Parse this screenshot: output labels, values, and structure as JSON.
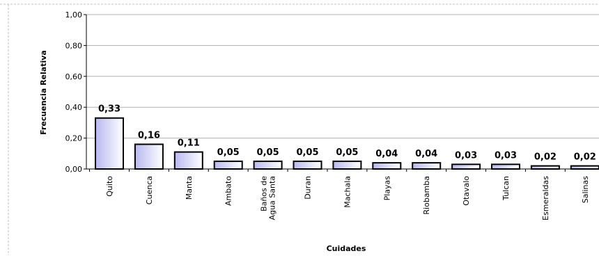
{
  "chart_data": {
    "type": "bar",
    "title": "",
    "xlabel": "Cuidades",
    "ylabel": "Frecuencia Relativa",
    "ylim": [
      0,
      1
    ],
    "yticks": [
      "0,00",
      "0,20",
      "0,40",
      "0,60",
      "0,80",
      "1,00"
    ],
    "grid": true,
    "categories": [
      [
        "Quito"
      ],
      [
        "Cuenca"
      ],
      [
        "Manta"
      ],
      [
        "Ambato"
      ],
      [
        "Baños de",
        "Agua Santa"
      ],
      [
        "Duran"
      ],
      [
        "Machala"
      ],
      [
        "Playas"
      ],
      [
        "Riobamba"
      ],
      [
        "Otavalo"
      ],
      [
        "Tulcan"
      ],
      [
        "Esmeraldas"
      ],
      [
        "Salinas"
      ]
    ],
    "values": [
      0.33,
      0.16,
      0.11,
      0.05,
      0.05,
      0.05,
      0.05,
      0.04,
      0.04,
      0.03,
      0.03,
      0.02,
      0.02
    ],
    "data_labels": [
      "0,33",
      "0,16",
      "0,11",
      "0,05",
      "0,05",
      "0,05",
      "0,05",
      "0,04",
      "0,04",
      "0,03",
      "0,03",
      "0,02",
      "0,02"
    ],
    "colors": {
      "bar_fill_dark": "#b8b8f0",
      "bar_fill_light": "#ffffff",
      "bar_stroke": "#000000",
      "grid": "#b0b0b0",
      "frame": "#c0c0c0"
    }
  }
}
